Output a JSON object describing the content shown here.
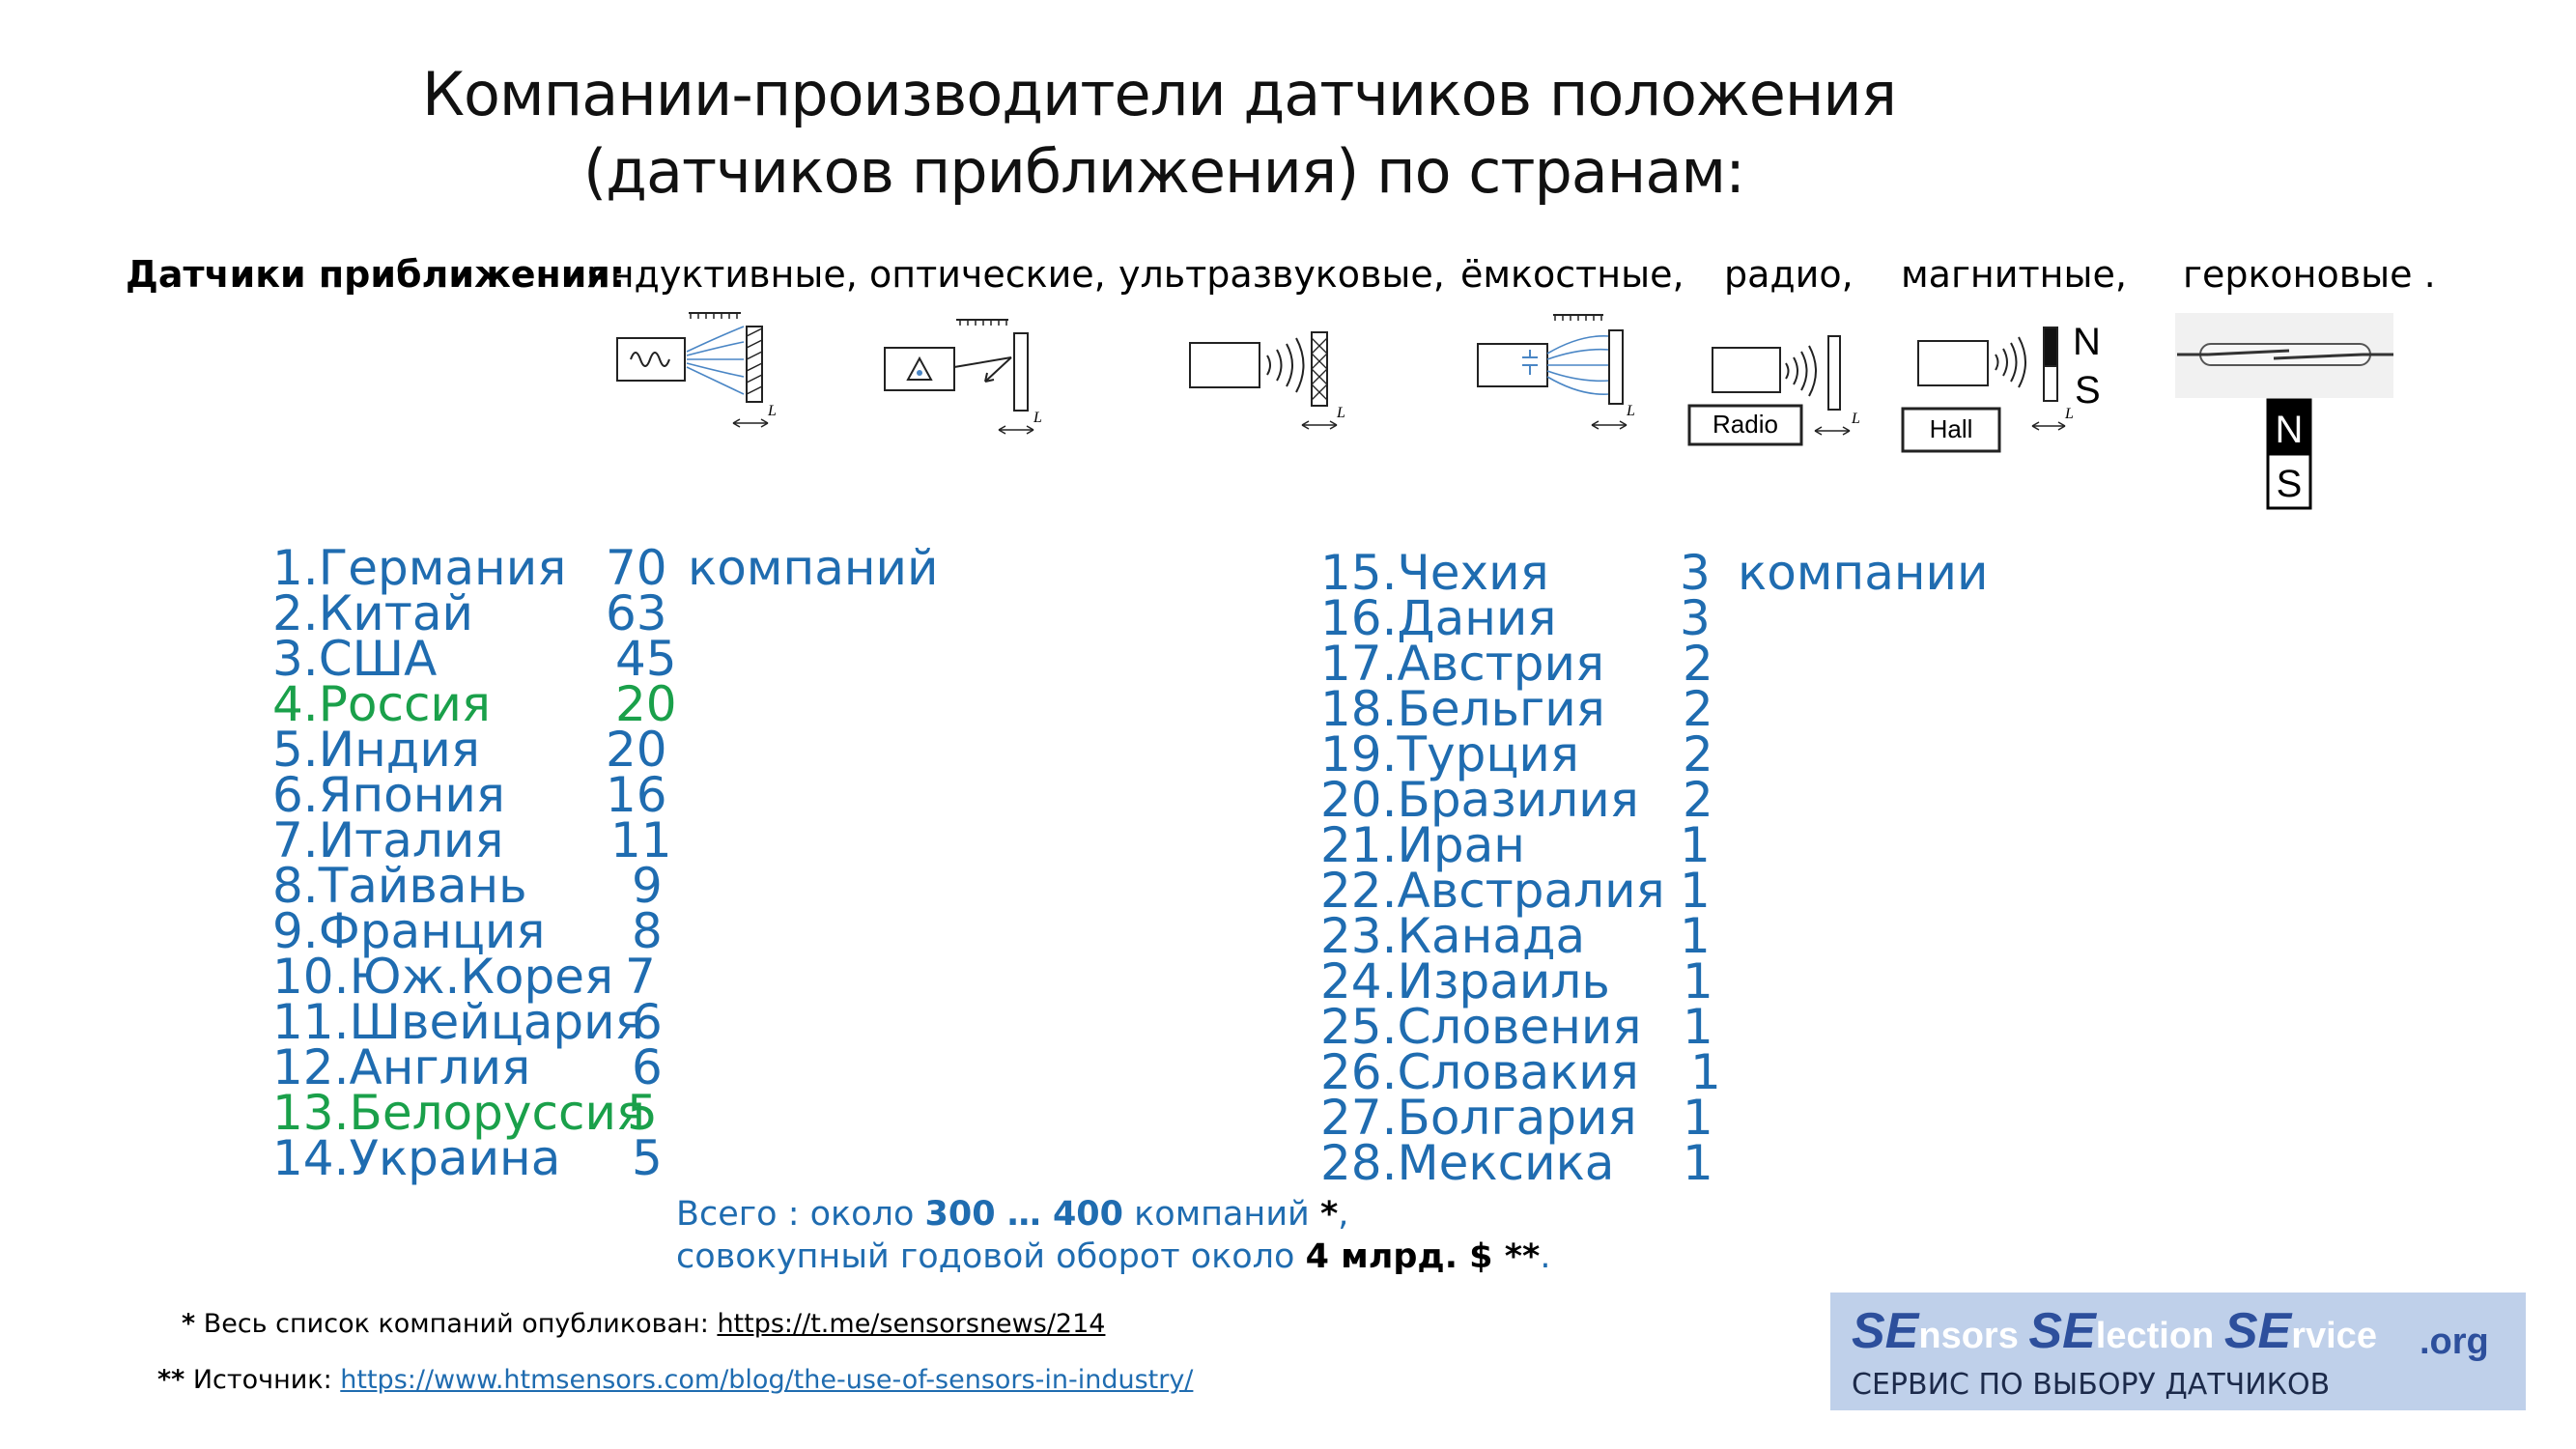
{
  "title": {
    "line1": "Компании-производители датчиков положения",
    "line2": "(датчиков приближения) по странам:"
  },
  "sensor_types": {
    "lead": "Датчики приближения",
    "items": [
      "индуктивные,",
      "оптические,",
      "ультразвуковые,",
      "ёмкостные,",
      "радио,",
      "магнитные,",
      "герконовые ."
    ],
    "diagram_labels": {
      "distance": "L",
      "radio_box": "Radio",
      "hall_box": "Hall",
      "north": "N",
      "south": "S"
    }
  },
  "countries_left": [
    {
      "name": "1.Германия",
      "count": "70",
      "suffix": "компаний",
      "highlight": false
    },
    {
      "name": "2.Китай",
      "count": "63",
      "highlight": false
    },
    {
      "name": "3.США",
      "count": "45",
      "highlight": false
    },
    {
      "name": "4.Россия",
      "count": "20",
      "highlight": true
    },
    {
      "name": "5.Индия",
      "count": "20",
      "highlight": false
    },
    {
      "name": "6.Япония",
      "count": "16",
      "highlight": false
    },
    {
      "name": "7.Италия",
      "count": "11",
      "highlight": false
    },
    {
      "name": "8.Тайвань",
      "count": "9",
      "highlight": false
    },
    {
      "name": "9.Франция",
      "count": "8",
      "highlight": false
    },
    {
      "name": "10.Юж.Корея",
      "count": "7",
      "highlight": false
    },
    {
      "name": "11.Швейцария",
      "count": "6",
      "highlight": false
    },
    {
      "name": "12.Англия",
      "count": "6",
      "highlight": false
    },
    {
      "name": "13.Белоруссия",
      "count": "5",
      "highlight": true
    },
    {
      "name": "14.Украина",
      "count": "5",
      "highlight": false
    }
  ],
  "countries_right": [
    {
      "name": "15.Чехия",
      "count": "3",
      "suffix": "компании"
    },
    {
      "name": "16.Дания",
      "count": "3"
    },
    {
      "name": "17.Австрия",
      "count": "2"
    },
    {
      "name": "18.Бельгия",
      "count": "2"
    },
    {
      "name": "19.Турция",
      "count": "2"
    },
    {
      "name": "20.Бразилия",
      "count": "2"
    },
    {
      "name": "21.Иран",
      "count": "1"
    },
    {
      "name": "22.Австралия",
      "count": "1"
    },
    {
      "name": "23.Канада",
      "count": "1"
    },
    {
      "name": "24.Израиль",
      "count": "1"
    },
    {
      "name": "25.Словения",
      "count": "1"
    },
    {
      "name": "26.Словакия",
      "count": "1"
    },
    {
      "name": "27.Болгария",
      "count": "1"
    },
    {
      "name": "28.Мексика",
      "count": "1"
    }
  ],
  "total": {
    "line1_prefix": "Всего : около ",
    "line1_range": "300 … 400",
    "line1_suffix": " компаний ",
    "line1_star": "*",
    "line1_comma": ",",
    "line2_prefix": "совокупный годовой оборот около ",
    "line2_value": "4 млрд. $ **",
    "line2_dot": "."
  },
  "footnotes": {
    "note1_star": "*",
    "note1_text": " Весь список компаний опубликован:  ",
    "note1_link": "https://t.me/sensorsnews/214",
    "note2_star": "**",
    "note2_text": " Источник:  ",
    "note2_link": "https://www.htmsensors.com/blog/the-use-of-sensors-in-industry/"
  },
  "brand": {
    "se1": "SE",
    "nsors": "nsors ",
    "se2": "SE",
    "lection": "lection ",
    "se3": "SE",
    "rvice": "rvice",
    "org": ".org",
    "tagline": "СЕРВИС ПО ВЫБОРУ ДАТЧИКОВ"
  },
  "colors": {
    "blue": "#1f6cb0",
    "green": "#1aa04a",
    "brand_bg": "#bfd0ea",
    "brand_text": "#2d4f9c"
  }
}
